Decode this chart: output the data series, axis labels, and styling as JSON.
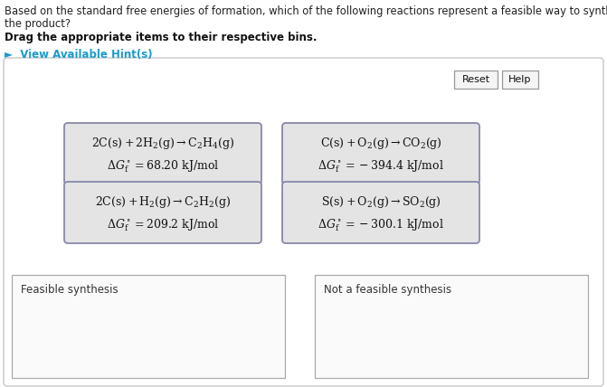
{
  "title_line1": "Based on the standard free energies of formation, which of the following reactions represent a feasible way to synthe",
  "title_line2": "the product?",
  "instruction": "Drag the appropriate items to their respective bins.",
  "hint_text": "►  View Available Hint(s)",
  "hint_color": "#1a9bcc",
  "bg_color": "#ffffff",
  "panel_border": "#c8c8c8",
  "card_bg": "#e4e4e4",
  "card_border": "#8888aa",
  "button_bg": "#f5f5f5",
  "button_border": "#999999",
  "bin_bg": "#fafafa",
  "bin_border": "#aaaaaa",
  "cards": [
    {
      "line1": "$2\\mathrm{C(s)} + 2\\mathrm{H_2(g)}\\rightarrow\\mathrm{C_2H_4(g)}$",
      "line2": "$\\Delta G^\\circ_\\mathrm{f} = 68.20\\ \\mathrm{kJ/mol}$",
      "col": 0,
      "row": 0
    },
    {
      "line1": "$\\mathrm{C(s)} + \\mathrm{O_2(g)}\\rightarrow\\mathrm{CO_2(g)}$",
      "line2": "$\\Delta G^\\circ_\\mathrm{f} = -394.4\\ \\mathrm{kJ/mol}$",
      "col": 1,
      "row": 0
    },
    {
      "line1": "$2\\mathrm{C(s)} + \\mathrm{H_2(g)}\\rightarrow\\mathrm{C_2H_2(g)}$",
      "line2": "$\\Delta G^\\circ_\\mathrm{f} = 209.2\\ \\mathrm{kJ/mol}$",
      "col": 0,
      "row": 1
    },
    {
      "line1": "$\\mathrm{S(s)} + \\mathrm{O_2(g)}\\rightarrow\\mathrm{SO_2(g)}$",
      "line2": "$\\Delta G^\\circ_\\mathrm{f} = -300.1\\ \\mathrm{kJ/mol}$",
      "col": 1,
      "row": 1
    }
  ],
  "bin_labels": [
    "Feasible synthesis",
    "Not a feasible synthesis"
  ],
  "reset_label": "Reset",
  "help_label": "Help",
  "title_fontsize": 8.3,
  "instr_fontsize": 8.5,
  "hint_fontsize": 8.5,
  "card_fontsize": 9.0,
  "bin_label_fontsize": 8.5,
  "btn_fontsize": 8.0
}
